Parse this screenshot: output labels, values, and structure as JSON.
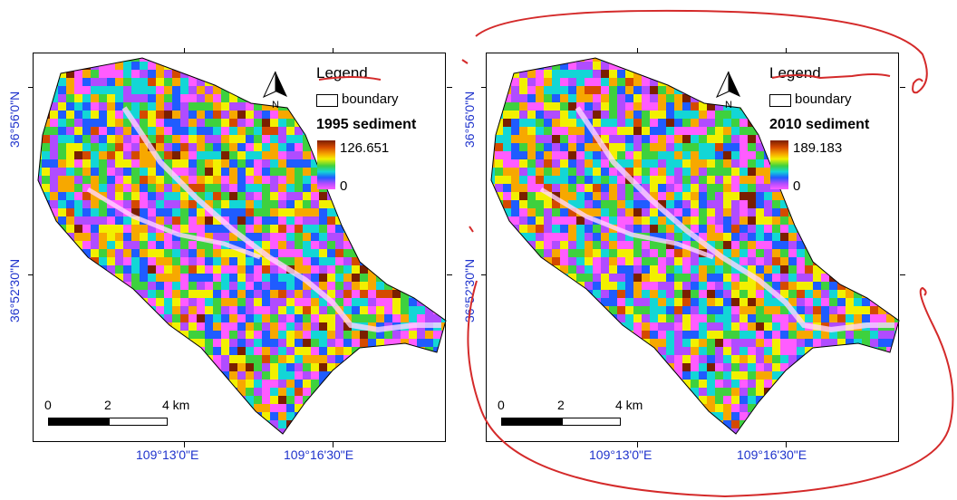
{
  "maps": [
    {
      "legend_title": "Legend",
      "boundary_label": "boundary",
      "layer_title": "1995 sediment",
      "ramp_max": "126.651",
      "ramp_min": "0",
      "north_label": "N",
      "scale_labels": [
        "0",
        "2",
        "4 km"
      ],
      "lat_labels": [
        "36°56'0\"N",
        "36°52'30\"N"
      ],
      "lon_labels": [
        "109°13'0\"E",
        "109°16'30\"E"
      ]
    },
    {
      "legend_title": "Legend",
      "boundary_label": "boundary",
      "layer_title": "2010 sediment",
      "ramp_max": "189.183",
      "ramp_min": "0",
      "north_label": "N",
      "scale_labels": [
        "0",
        "2",
        "4 km"
      ],
      "lat_labels": [
        "36°56'0\"N",
        "36°52'30\"N"
      ],
      "lon_labels": [
        "109°13'0\"E",
        "109°16'30\"E"
      ]
    }
  ],
  "colors": {
    "graticule_label": "#1f33cc",
    "annotation": "#d42a2a",
    "ramp": [
      "#7a1f00",
      "#d44a00",
      "#f7a800",
      "#f2f000",
      "#3ed13e",
      "#13d6d6",
      "#1f5cff",
      "#b04cff",
      "#ff5cff"
    ]
  }
}
